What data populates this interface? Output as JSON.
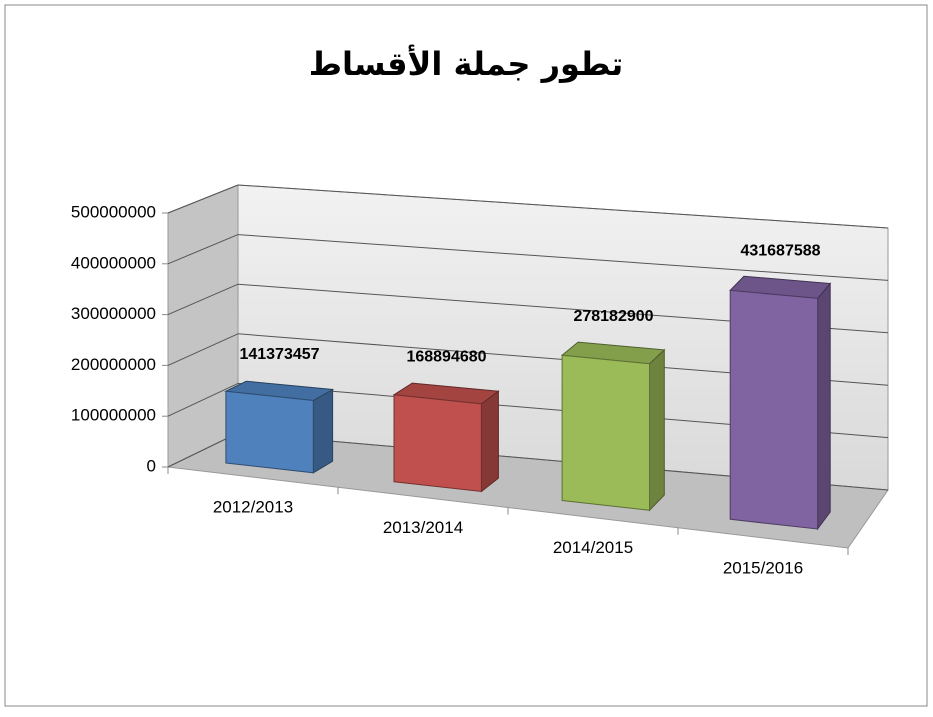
{
  "chart_data": {
    "type": "bar3d",
    "title": "تطور جملة الأقساط",
    "categories": [
      "2012/2013",
      "2013/2014",
      "2014/2015",
      "2015/2016"
    ],
    "values": [
      141373457,
      168894680,
      278182900,
      431687588
    ],
    "colors": [
      "#4f81bd",
      "#c0504d",
      "#9bbb59",
      "#8064a2"
    ],
    "ylim": [
      0,
      500000000
    ],
    "yticks": [
      0,
      100000000,
      200000000,
      300000000,
      400000000,
      500000000
    ],
    "grid": true
  }
}
